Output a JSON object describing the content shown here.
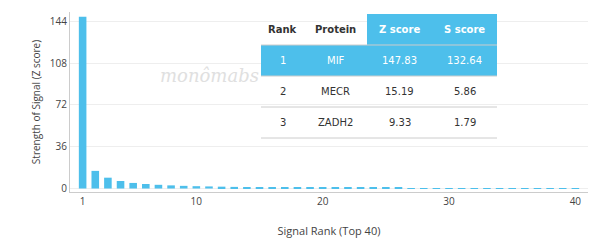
{
  "chart_data": {
    "type": "bar",
    "x": [
      1,
      2,
      3,
      4,
      5,
      6,
      7,
      8,
      9,
      10,
      11,
      12,
      13,
      14,
      15,
      16,
      17,
      18,
      19,
      20,
      21,
      22,
      23,
      24,
      25,
      26,
      27,
      28,
      29,
      30,
      31,
      32,
      33,
      34,
      35,
      36,
      37,
      38,
      39,
      40
    ],
    "values": [
      147.83,
      15.19,
      9.33,
      6.5,
      4.8,
      3.9,
      3.2,
      2.7,
      2.3,
      2.0,
      1.8,
      1.6,
      1.4,
      1.2,
      1.1,
      1.0,
      0.9,
      0.85,
      0.8,
      0.75,
      0.7,
      0.65,
      0.6,
      0.55,
      0.5,
      0.45,
      0.4,
      0.38,
      0.35,
      0.32,
      0.3,
      0.28,
      0.26,
      0.24,
      0.22,
      0.2,
      0.18,
      0.16,
      0.14,
      0.12
    ],
    "color": "#4dbfeb",
    "xlim": [
      0,
      41
    ],
    "xticks": [
      1,
      10,
      20,
      30,
      40
    ],
    "ylim": [
      -3,
      152
    ],
    "yticks": [
      0,
      36,
      72,
      108,
      144
    ],
    "xlabel": "Signal Rank (Top 40)",
    "ylabel": "Strength of Signal (Z score)",
    "grid": true,
    "annotations": [
      "monômabs"
    ],
    "table": {
      "headers": [
        "Rank",
        "Protein",
        "Z score",
        "S score"
      ],
      "rows": [
        [
          "1",
          "MIF",
          "147.83",
          "132.64"
        ],
        [
          "2",
          "MECR",
          "15.19",
          "5.86"
        ],
        [
          "3",
          "ZADH2",
          "9.33",
          "1.79"
        ]
      ],
      "color": "#4dbfeb"
    }
  }
}
